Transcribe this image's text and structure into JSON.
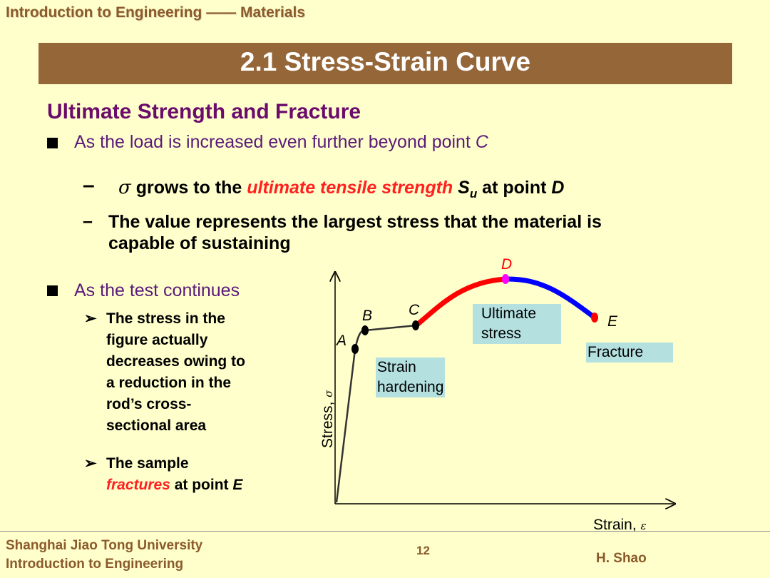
{
  "header": {
    "course_title": "Introduction to Engineering —— Materials"
  },
  "slide": {
    "title": "2.1 Stress-Strain Curve",
    "heading": "Ultimate Strength and Fracture",
    "bullet1": {
      "text": "As the load is increased even further beyond point ",
      "point": "C"
    },
    "sub1": {
      "symbol": "σ",
      "pre": " grows to the ",
      "highlight": "ultimate tensile strength",
      "mid": " S",
      "subscript": "u",
      "post": " at point ",
      "point": "D"
    },
    "sub2": {
      "line1": "The value represents the largest stress that the material is",
      "line2": "capable of sustaining"
    },
    "bullet2": {
      "text": "As the test continues"
    },
    "arrow_items": [
      {
        "lines": [
          "The stress in the",
          "figure actually",
          "decreases owing to",
          "a reduction in the",
          "rod’s cross-",
          "sectional area"
        ]
      },
      {
        "line1": "The sample",
        "highlight": "fractures",
        "post": " at point ",
        "point": "E"
      }
    ]
  },
  "diagram": {
    "y_axis_label": "Stress, ",
    "y_axis_symbol": "σ",
    "x_axis_label": "Strain, ",
    "x_axis_symbol": "ε",
    "point_labels": {
      "A": "A",
      "B": "B",
      "C": "C",
      "D": "D",
      "E": "E"
    },
    "boxes": {
      "strain_hardening": [
        "Strain",
        "hardening"
      ],
      "ultimate_stress": [
        "Ultimate",
        "stress"
      ],
      "fracture": "Fracture"
    },
    "colors": {
      "hardening": "#ff0000",
      "necking": "#0000ff",
      "elastic": "#333333",
      "peak": "#ff00ff"
    }
  },
  "footer": {
    "university": "Shanghai Jiao Tong University",
    "course": "Introduction to Engineering",
    "page": "12",
    "author": "H. Shao"
  }
}
